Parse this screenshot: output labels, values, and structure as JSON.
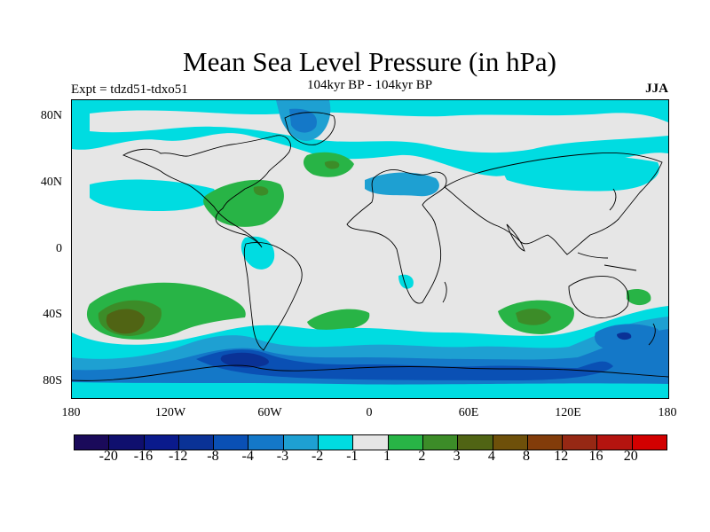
{
  "title": "Mean Sea Level Pressure (in hPa)",
  "expt_label": "Expt = tdzd51-tdxo51",
  "period_label": "104kyr BP - 104kyr BP",
  "season_label": "JJA",
  "y_labels": [
    "80N",
    "40N",
    "0",
    "40S",
    "80S"
  ],
  "x_labels": [
    "180",
    "120W",
    "60W",
    "0",
    "60E",
    "120E",
    "180"
  ],
  "colorbar": {
    "colors": [
      "#1a0a5a",
      "#0f0f6e",
      "#0a1a8c",
      "#0a3296",
      "#0a50b4",
      "#1478c8",
      "#1ea0d2",
      "#00dce1",
      "#e6e6e6",
      "#28b446",
      "#3c8c28",
      "#506414",
      "#6e500a",
      "#823c0a",
      "#962814",
      "#b4140f",
      "#d20000"
    ],
    "labels": [
      "-20",
      "-16",
      "-12",
      "-8",
      "-4",
      "-3",
      "-2",
      "-1",
      "1",
      "2",
      "3",
      "4",
      "8",
      "12",
      "16",
      "20"
    ]
  },
  "colors": {
    "neutral": "#e6e6e6",
    "neg1": "#00dce1",
    "neg2": "#1ea0d2",
    "neg3": "#1478c8",
    "neg4": "#0a50b4",
    "neg5": "#0a3296",
    "pos1": "#28b446",
    "pos2": "#3c8c28",
    "pos3": "#506414",
    "pos4": "#6e500a"
  }
}
